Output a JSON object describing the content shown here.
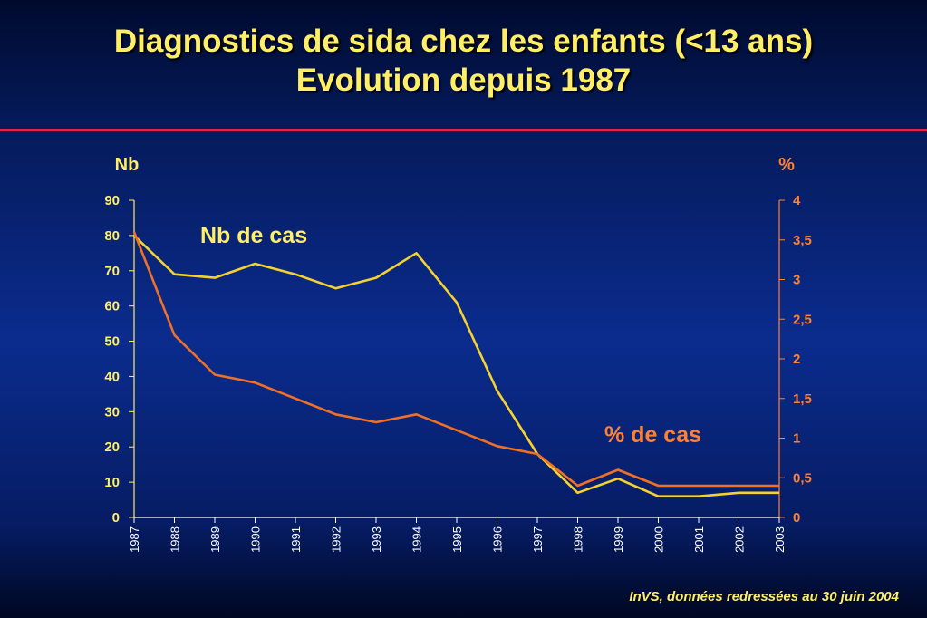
{
  "title_line1": "Diagnostics de sida chez les enfants (<13 ans)",
  "title_line2": "Evolution depuis 1987",
  "source": "InVS, données redressées au 30 juin 2004",
  "chart_data": {
    "type": "line",
    "x": [
      "1987",
      "1988",
      "1989",
      "1990",
      "1991",
      "1992",
      "1993",
      "1994",
      "1995",
      "1996",
      "1997",
      "1998",
      "1999",
      "2000",
      "2001",
      "2002",
      "2003"
    ],
    "y_left": {
      "label": "Nb",
      "ticks": [
        "0",
        "10",
        "20",
        "30",
        "40",
        "50",
        "60",
        "70",
        "80",
        "90"
      ],
      "range": [
        0,
        90
      ]
    },
    "y_right": {
      "label": "%",
      "ticks": [
        "0",
        "0,5",
        "1",
        "1,5",
        "2",
        "2,5",
        "3",
        "3,5",
        "4"
      ],
      "range": [
        0,
        4
      ]
    },
    "series": [
      {
        "name": "Nb de cas",
        "axis": "left",
        "color": "#f5d22e",
        "values": [
          80,
          69,
          68,
          72,
          69,
          65,
          68,
          75,
          61,
          36,
          18,
          7,
          11,
          6,
          6,
          7,
          7
        ]
      },
      {
        "name": "% de cas",
        "axis": "right",
        "color": "#f07026",
        "values": [
          3.6,
          2.3,
          1.8,
          1.7,
          1.5,
          1.3,
          1.2,
          1.3,
          1.1,
          0.9,
          0.8,
          0.4,
          0.6,
          0.4,
          0.4,
          0.4,
          0.4
        ]
      }
    ],
    "grid": false,
    "legend": "inline labels"
  }
}
